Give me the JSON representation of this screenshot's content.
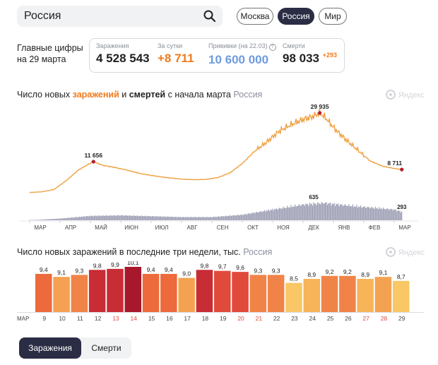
{
  "search": {
    "value": "Россия"
  },
  "region_tabs": [
    {
      "label": "Москва",
      "active": false
    },
    {
      "label": "Россия",
      "active": true
    },
    {
      "label": "Мир",
      "active": false
    }
  ],
  "main_caption": {
    "line1": "Главные цифры",
    "line2": "на 29 марта"
  },
  "stats": {
    "infections": {
      "label": "Заражения",
      "value": "4 528 543"
    },
    "per_day": {
      "label": "За сутки",
      "value": "+8 711"
    },
    "vaccinations": {
      "label": "Прививки (на 22.03)",
      "value": "10 600 000"
    },
    "deaths": {
      "label": "Смерти",
      "value": "98 033",
      "delta": "+293"
    }
  },
  "brand": {
    "label": "Яндекс"
  },
  "chart1": {
    "title_part1": "Число новых ",
    "title_infections": "заражений",
    "title_part2": " и ",
    "title_deaths": "смертей",
    "title_part3": " с начала марта",
    "region": "Россия"
  },
  "chart2": {
    "title": "Число новых заражений в последние три недели, тыс.",
    "region": "Россия"
  },
  "bottom_tabs": [
    {
      "label": "Заражения",
      "active": true
    },
    {
      "label": "Смерти",
      "active": false
    }
  ],
  "colors": {
    "accent_orange": "#f07a1c",
    "vaccination_blue": "#6e9be0",
    "dark": "#2b2d45",
    "deaths_bars": "#9ea0b5",
    "weekend_red": "#e04a3a"
  },
  "chart_data": [
    {
      "type": "line",
      "series_infections": {
        "keypoints": [
          {
            "month": 0,
            "value": 100
          },
          {
            "month": 0.4,
            "value": 350
          },
          {
            "month": 0.8,
            "value": 1200
          },
          {
            "month": 1.2,
            "value": 4500
          },
          {
            "month": 1.6,
            "value": 8500
          },
          {
            "month": 1.95,
            "value": 10800
          },
          {
            "month": 2.1,
            "value": 11656
          },
          {
            "month": 2.4,
            "value": 10300
          },
          {
            "month": 2.8,
            "value": 9500
          },
          {
            "month": 3.2,
            "value": 8500
          },
          {
            "month": 3.6,
            "value": 7300
          },
          {
            "month": 4.0,
            "value": 6500
          },
          {
            "month": 4.5,
            "value": 5700
          },
          {
            "month": 5.0,
            "value": 5100
          },
          {
            "month": 5.4,
            "value": 4900
          },
          {
            "month": 5.8,
            "value": 5000
          },
          {
            "month": 6.2,
            "value": 5700
          },
          {
            "month": 6.6,
            "value": 7500
          },
          {
            "month": 7.0,
            "value": 11000
          },
          {
            "month": 7.4,
            "value": 15500
          },
          {
            "month": 7.8,
            "value": 19000
          },
          {
            "month": 8.2,
            "value": 23000
          },
          {
            "month": 8.6,
            "value": 25500
          },
          {
            "month": 9.0,
            "value": 27500
          },
          {
            "month": 9.3,
            "value": 28500
          },
          {
            "month": 9.55,
            "value": 29935
          },
          {
            "month": 9.75,
            "value": 28000
          },
          {
            "month": 10.0,
            "value": 24500
          },
          {
            "month": 10.4,
            "value": 20000
          },
          {
            "month": 10.8,
            "value": 16000
          },
          {
            "month": 11.2,
            "value": 12000
          },
          {
            "month": 11.6,
            "value": 10000
          },
          {
            "month": 12.0,
            "value": 9100
          },
          {
            "month": 12.25,
            "value": 8711
          }
        ],
        "peak_labels": [
          {
            "month": 2.1,
            "value": 11656,
            "label": "11 656"
          },
          {
            "month": 9.55,
            "value": 29935,
            "label": "29 935"
          },
          {
            "month": 12.25,
            "value": 8711,
            "label": "8 711"
          }
        ]
      },
      "series_deaths": {
        "keypoints": [
          {
            "month": 0,
            "value": 0
          },
          {
            "month": 1.0,
            "value": 60
          },
          {
            "month": 2.0,
            "value": 150
          },
          {
            "month": 3.0,
            "value": 170
          },
          {
            "month": 4.0,
            "value": 140
          },
          {
            "month": 5.0,
            "value": 110
          },
          {
            "month": 6.0,
            "value": 110
          },
          {
            "month": 7.0,
            "value": 190
          },
          {
            "month": 8.0,
            "value": 370
          },
          {
            "month": 9.0,
            "value": 540
          },
          {
            "month": 9.7,
            "value": 600
          },
          {
            "month": 10.0,
            "value": 560
          },
          {
            "month": 11.0,
            "value": 460
          },
          {
            "month": 12.0,
            "value": 370
          },
          {
            "month": 12.25,
            "value": 293
          }
        ],
        "peak_labels": [
          {
            "month": 9.35,
            "value": 635,
            "label": "635"
          },
          {
            "month": 12.25,
            "value": 293,
            "label": "293"
          }
        ]
      },
      "x_ticks": [
        "МАР",
        "АПР",
        "МАЙ",
        "ИЮН",
        "ИЮЛ",
        "АВГ",
        "СЕН",
        "ОКТ",
        "НОЯ",
        "ДЕК",
        "ЯНВ",
        "ФЕВ",
        "МАР"
      ]
    },
    {
      "type": "bar",
      "month_label": "МАР",
      "categories": [
        "9",
        "10",
        "11",
        "12",
        "13",
        "14",
        "15",
        "16",
        "17",
        "18",
        "19",
        "20",
        "21",
        "22",
        "23",
        "24",
        "25",
        "26",
        "27",
        "28",
        "29"
      ],
      "values": [
        9.4,
        9.1,
        9.3,
        9.8,
        9.9,
        10.1,
        9.4,
        9.4,
        9.0,
        9.8,
        9.7,
        9.6,
        9.3,
        9.3,
        8.5,
        8.9,
        9.2,
        9.2,
        8.9,
        9.1,
        8.7
      ],
      "value_labels": [
        "9,4",
        "9,1",
        "9,3",
        "9,8",
        "9,9",
        "10,1",
        "9,4",
        "9,4",
        "9,0",
        "9,8",
        "9,7",
        "9,6",
        "9,3",
        "9,3",
        "8,5",
        "8,9",
        "9,2",
        "9,2",
        "8,9",
        "9,1",
        "8,7"
      ],
      "weekend": [
        false,
        false,
        false,
        false,
        true,
        true,
        false,
        false,
        false,
        false,
        false,
        true,
        true,
        false,
        false,
        false,
        false,
        false,
        true,
        true,
        false
      ]
    }
  ]
}
